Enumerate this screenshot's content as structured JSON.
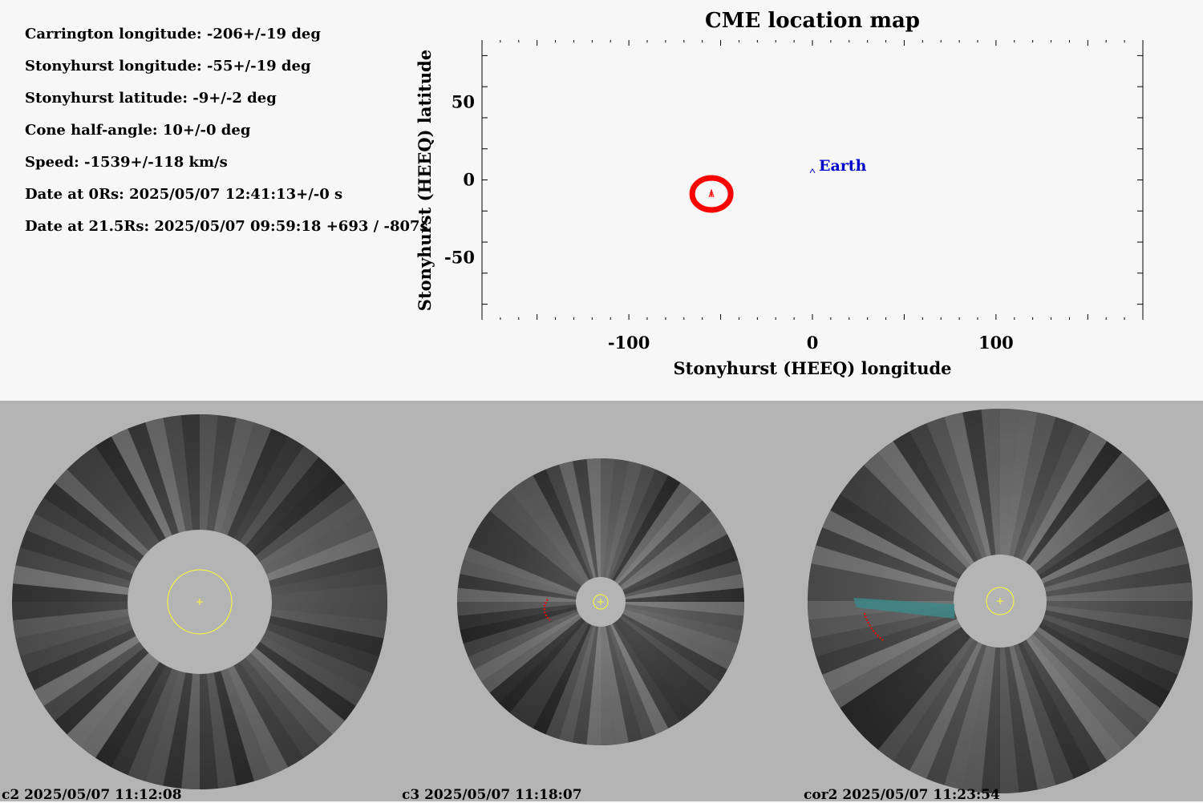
{
  "parameters": [
    "Carrington longitude: -206+/-19 deg",
    "Stonyhurst longitude: -55+/-19 deg",
    "Stonyhurst latitude: -9+/-2 deg",
    "Cone half-angle: 10+/-0 deg",
    "Speed: -1539+/-118 km/s",
    "Date at 0Rs: 2025/05/07 12:41:13+/-0 s",
    "Date at 21.5Rs: 2025/05/07 09:59:18 +693 / -807s"
  ],
  "chart_data": {
    "type": "scatter",
    "title": "CME location map",
    "xlabel": "Stonyhurst (HEEQ) longitude",
    "ylabel": "Stonyhurst (HEEQ) latitude",
    "xlim": [
      -180,
      180
    ],
    "ylim": [
      -90,
      90
    ],
    "xticks": [
      -100,
      0,
      100
    ],
    "yticks": [
      50,
      0,
      -50
    ],
    "cme": {
      "lon": -55,
      "lat": -9,
      "color": "#ff0000"
    },
    "earth": {
      "label": "Earth",
      "lon": 0,
      "lat": 7,
      "color": "#0000cc"
    }
  },
  "coronagraphs": [
    {
      "label": "c2 2025/05/07 11:12:08"
    },
    {
      "label": "c3 2025/05/07 11:18:07"
    },
    {
      "label": "cor2 2025/05/07 11:23:54"
    }
  ],
  "colors": {
    "sun_marker": "#ffff33",
    "cme_marker": "#ff0000",
    "background_bottom": "#b4b4b4"
  }
}
